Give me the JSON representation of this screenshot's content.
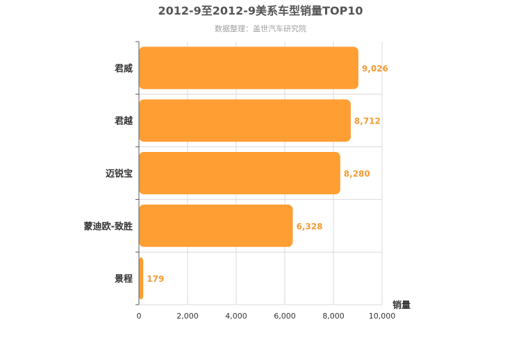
{
  "chart_data": {
    "type": "bar",
    "orientation": "horizontal",
    "title": "2012-9至2012-9美系车型销量TOP10",
    "subtitle": "数据整理：盖世汽车研究院",
    "xlabel": "销量",
    "ylabel": "",
    "categories": [
      "君威",
      "君越",
      "迈锐宝",
      "蒙迪欧-致胜",
      "景程"
    ],
    "values": [
      9026,
      8712,
      8280,
      6328,
      179
    ],
    "value_labels": [
      "9,026",
      "8,712",
      "8,280",
      "6,328",
      "179"
    ],
    "xlim": [
      0,
      10000
    ],
    "x_ticks": [
      0,
      2000,
      4000,
      6000,
      8000,
      10000
    ],
    "x_tick_labels": [
      "0",
      "2,000",
      "4,000",
      "6,000",
      "8,000",
      "10,000"
    ],
    "grid": true,
    "colors": {
      "bar": "#FF9E33",
      "value_label": "#F59A33",
      "title": "#555555",
      "subtitle": "#A0A0A0",
      "axis_text": "#333333",
      "grid": "#D8D8D8",
      "axis": "#555555"
    }
  }
}
